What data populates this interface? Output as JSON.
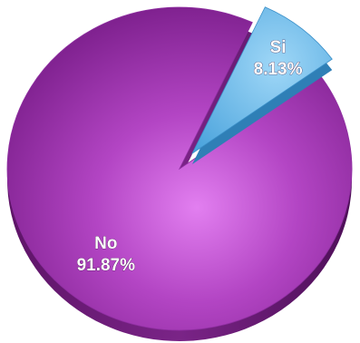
{
  "chart_data": {
    "type": "pie",
    "title": "",
    "slices": [
      {
        "label": "No",
        "value": 91.87,
        "value_label": "91.87%",
        "color": "#b345c4"
      },
      {
        "label": "Si",
        "value": 8.13,
        "value_label": "8.13%",
        "color": "#5fb8ec"
      }
    ],
    "exploded": "Si",
    "style": "3d-tilted",
    "legend": "none"
  }
}
